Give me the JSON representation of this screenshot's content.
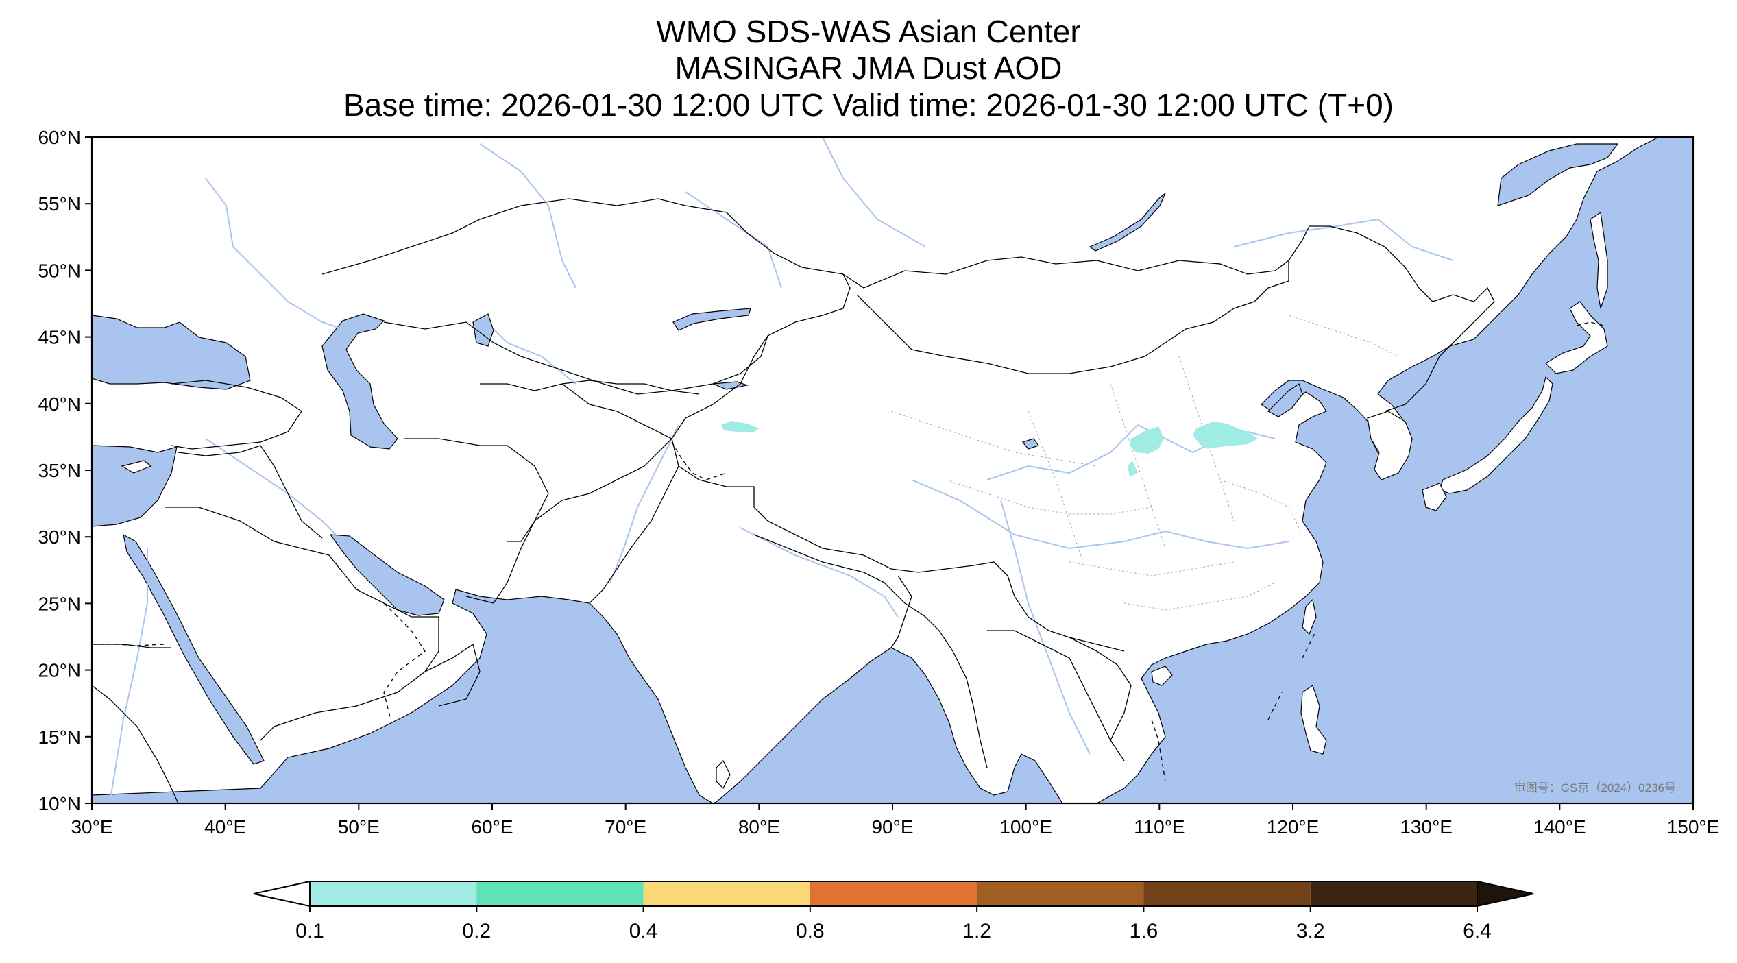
{
  "title": {
    "line1": "WMO SDS-WAS Asian Center",
    "line2": "MASINGAR JMA Dust AOD",
    "line3": "Base time: 2026-01-30 12:00 UTC Valid time: 2026-01-30 12:00 UTC (T+0)"
  },
  "map": {
    "lon_range": [
      30,
      150
    ],
    "lat_range": [
      10,
      60
    ],
    "x_ticks": [
      "30°E",
      "40°E",
      "50°E",
      "60°E",
      "70°E",
      "80°E",
      "90°E",
      "100°E",
      "110°E",
      "120°E",
      "130°E",
      "140°E",
      "150°E"
    ],
    "y_ticks": [
      "60°N",
      "55°N",
      "50°N",
      "45°N",
      "40°N",
      "35°N",
      "30°N",
      "25°N",
      "20°N",
      "15°N",
      "10°N"
    ],
    "approval_stamp": "审图号：GS京（2024）0236号",
    "colors": {
      "sea": "#a9c4ee",
      "land": "#ffffff",
      "rivers": "#a9c4ee",
      "border": "#000000",
      "province_border": "#aaaaaa"
    },
    "dust_regions": [
      {
        "name": "Tarim basin patch",
        "lon": 79.5,
        "lat": 37.9,
        "aod_class": "0.1-0.2"
      },
      {
        "name": "Ordos patch",
        "lon": 108.2,
        "lat": 37.2,
        "aod_class": "0.1-0.2"
      },
      {
        "name": "North China patch",
        "lon": 113.5,
        "lat": 37.3,
        "aod_class": "0.1-0.2"
      },
      {
        "name": "Small patch",
        "lon": 107.0,
        "lat": 34.6,
        "aod_class": "0.1-0.2"
      }
    ]
  },
  "colorbar": {
    "labels": [
      "0.1",
      "0.2",
      "0.4",
      "0.8",
      "1.2",
      "1.6",
      "3.2",
      "6.4"
    ],
    "colors": [
      "#a0ece4",
      "#60e2b8",
      "#fcd977",
      "#e07232",
      "#a05e22",
      "#714218",
      "#3c2413"
    ],
    "under_color": "#ffffff",
    "over_color": "#1e140c"
  }
}
